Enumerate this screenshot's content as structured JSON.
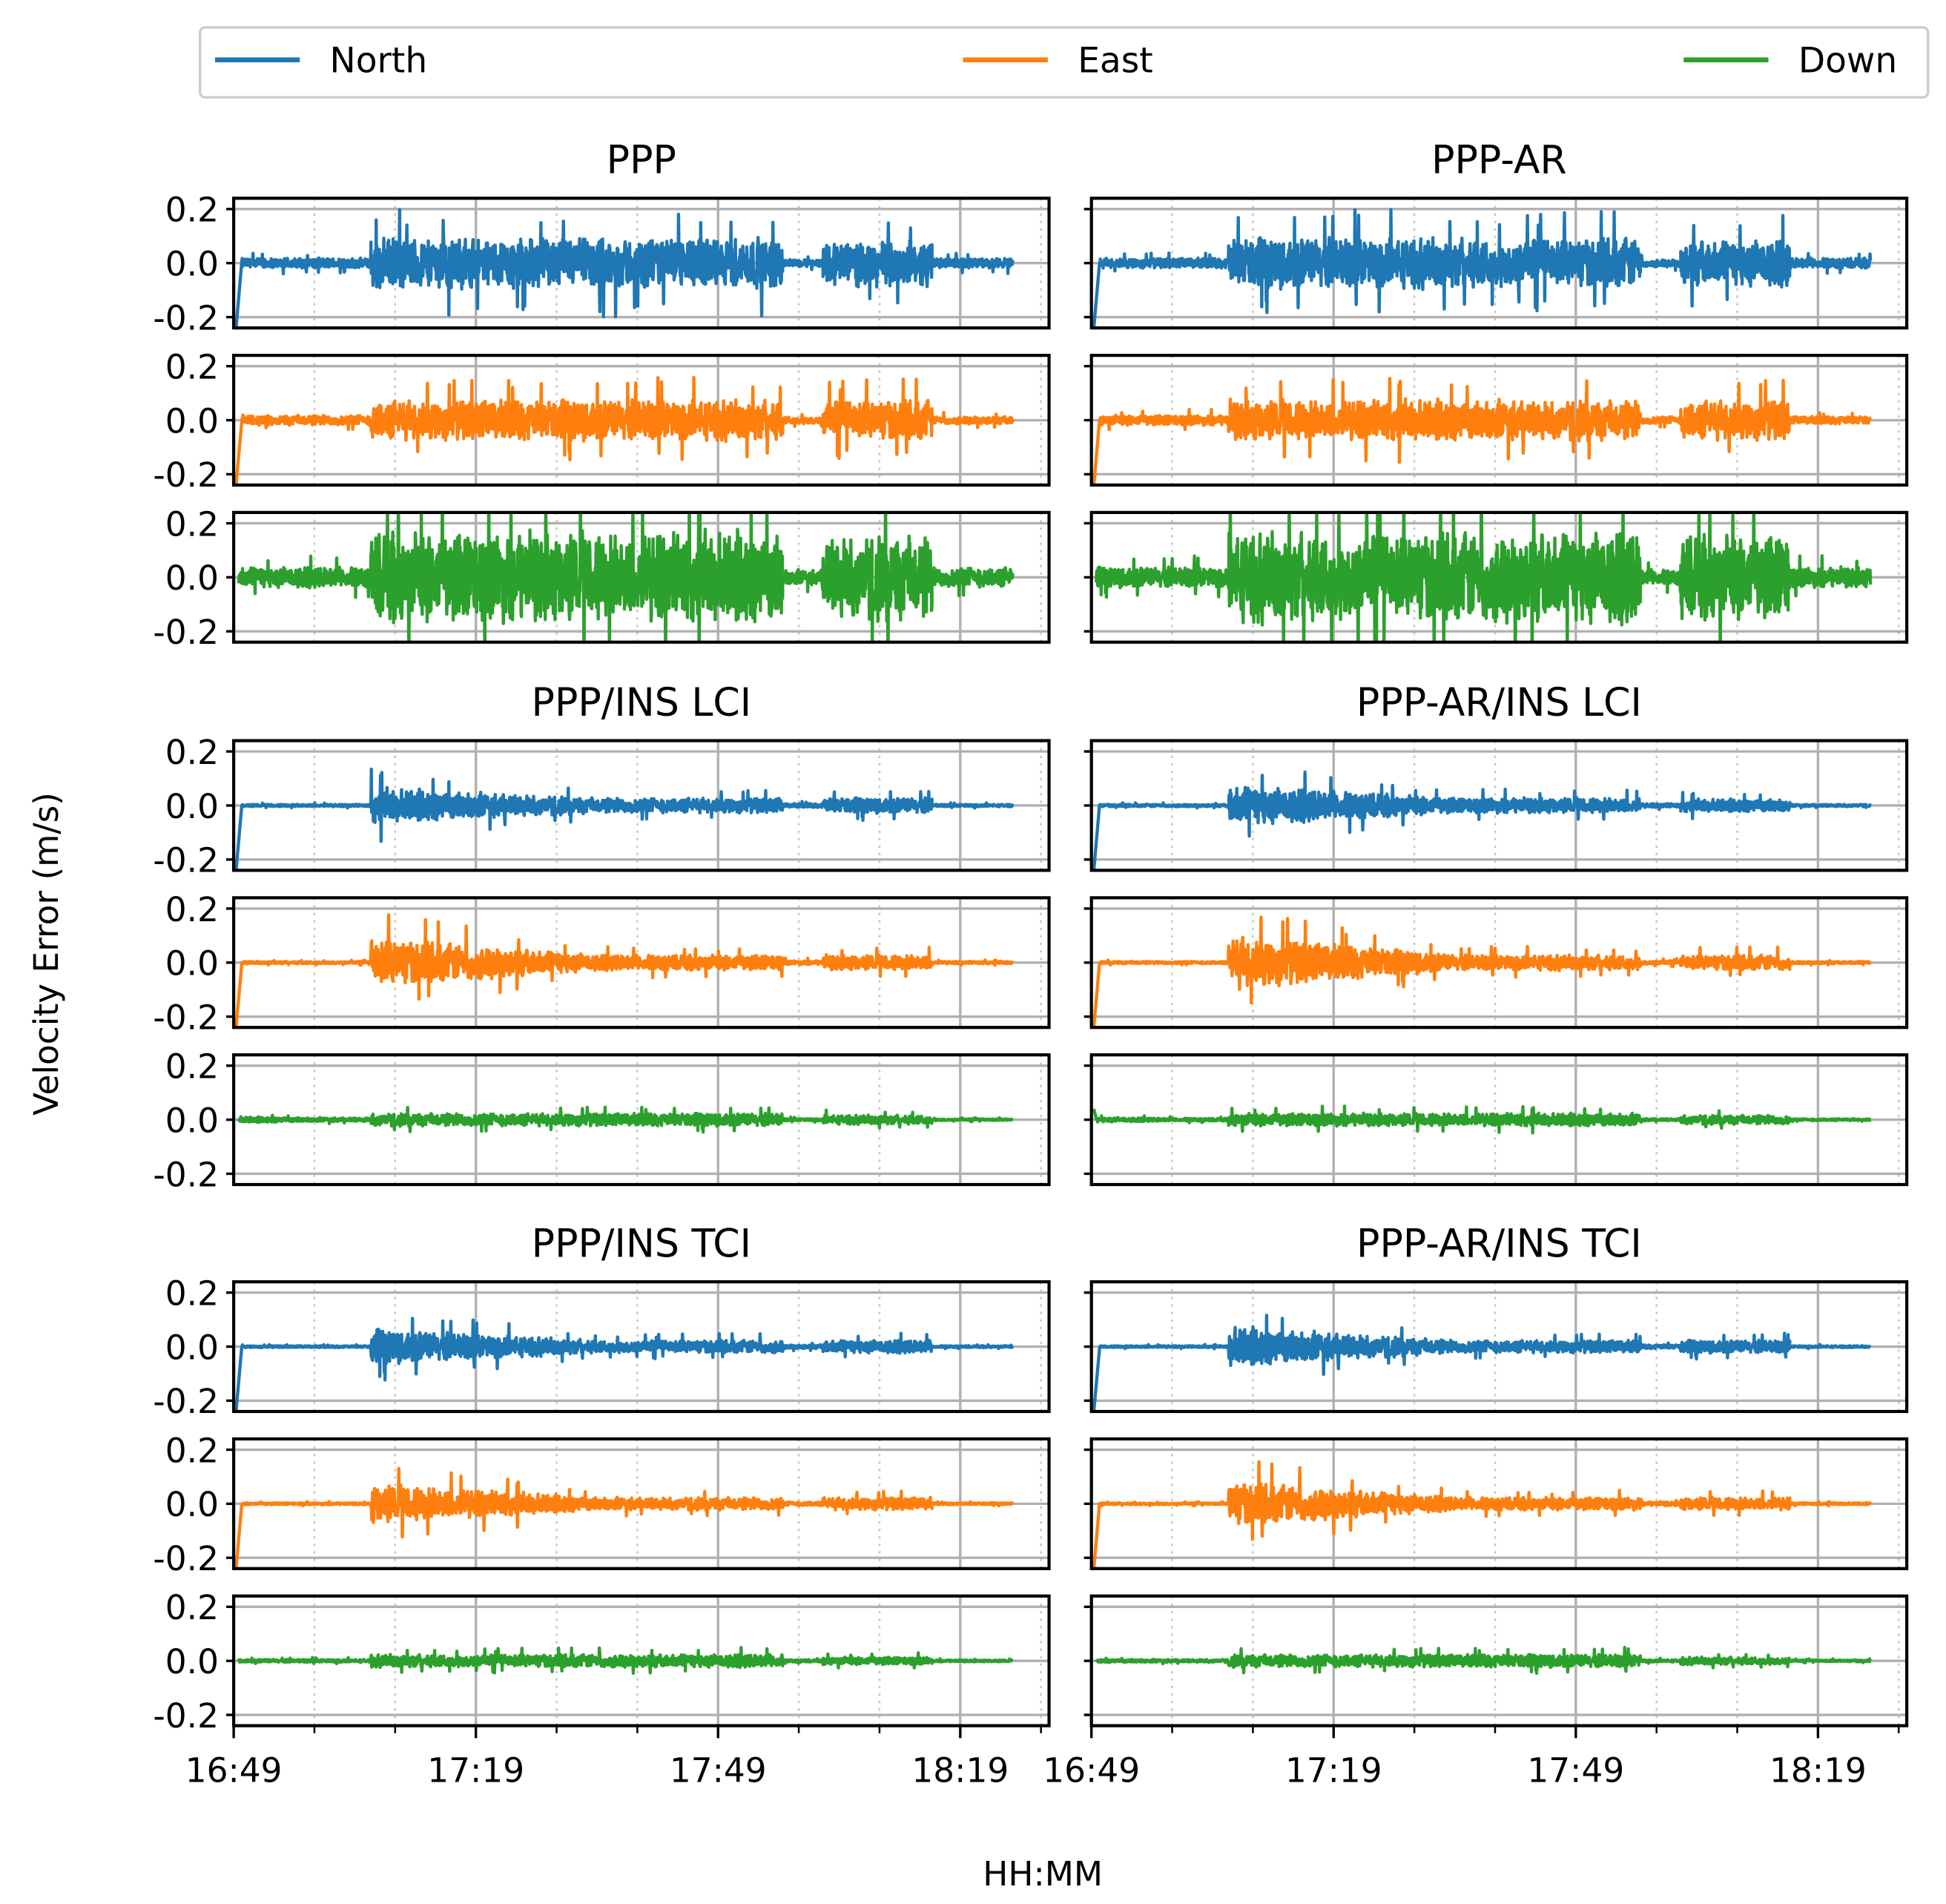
{
  "chart_data": {
    "type": "line",
    "xlabel": "HH:MM",
    "ylabel": "Velocity Error (m/s)",
    "x_unit": "minutes after 16:49",
    "xlim": [
      0,
      101
    ],
    "x_major_ticks": [
      0,
      30,
      60,
      90
    ],
    "x_tick_labels": [
      "16:49",
      "17:19",
      "17:49",
      "18:19"
    ],
    "x_minor_ticks": [
      10,
      20,
      40,
      50,
      70,
      80,
      100
    ],
    "ylim": [
      -0.24,
      0.24
    ],
    "y_ticks": [
      0.2,
      0.0,
      -0.2
    ],
    "y_tick_labels": [
      "0.2",
      "0.0",
      "-0.2"
    ],
    "grid": true,
    "legend": {
      "placement": "top",
      "entries": [
        {
          "name": "North",
          "color": "#1f77b4"
        },
        {
          "name": "East",
          "color": "#ff7f0e"
        },
        {
          "name": "Down",
          "color": "#2ca02c"
        }
      ]
    },
    "segments_note": "each segment: [start_min, end_min, amplitude_start, amplitude_end] of the error envelope (m/s)",
    "panels": [
      {
        "title": "PPP",
        "series": [
          {
            "name": "North",
            "initial": -0.24,
            "segments": [
              [
                1,
                17,
                0.02,
                0.02
              ],
              [
                17,
                68,
                0.1,
                0.1
              ],
              [
                68,
                73,
                0.015,
                0.015
              ],
              [
                73,
                86.5,
                0.09,
                0.09
              ],
              [
                86.5,
                96.5,
                0.02,
                0.02
              ]
            ]
          },
          {
            "name": "East",
            "initial": -0.24,
            "segments": [
              [
                1,
                17,
                0.02,
                0.02
              ],
              [
                17,
                68,
                0.08,
                0.08
              ],
              [
                68,
                73,
                0.015,
                0.015
              ],
              [
                73,
                86.5,
                0.08,
                0.08
              ],
              [
                86.5,
                96.5,
                0.015,
                0.015
              ]
            ]
          },
          {
            "name": "Down",
            "initial": 0,
            "segments": [
              [
                0,
                17,
                0.04,
                0.04
              ],
              [
                17,
                68,
                0.18,
                0.18
              ],
              [
                68,
                73,
                0.03,
                0.03
              ],
              [
                73,
                86.5,
                0.17,
                0.17
              ],
              [
                86.5,
                96.5,
                0.04,
                0.04
              ]
            ]
          }
        ]
      },
      {
        "title": "PPP-AR",
        "series": [
          {
            "name": "North",
            "initial": -0.24,
            "segments": [
              [
                1,
                17,
                0.02,
                0.02
              ],
              [
                17,
                68,
                0.1,
                0.1
              ],
              [
                68,
                73,
                0.015,
                0.015
              ],
              [
                73,
                86.5,
                0.09,
                0.09
              ],
              [
                86.5,
                96.5,
                0.02,
                0.02
              ]
            ]
          },
          {
            "name": "East",
            "initial": -0.24,
            "segments": [
              [
                1,
                17,
                0.02,
                0.02
              ],
              [
                17,
                68,
                0.08,
                0.08
              ],
              [
                68,
                73,
                0.015,
                0.015
              ],
              [
                73,
                86.5,
                0.08,
                0.08
              ],
              [
                86.5,
                96.5,
                0.015,
                0.015
              ]
            ]
          },
          {
            "name": "Down",
            "initial": 0,
            "segments": [
              [
                0,
                17,
                0.04,
                0.04
              ],
              [
                17,
                68,
                0.18,
                0.18
              ],
              [
                68,
                73,
                0.03,
                0.03
              ],
              [
                73,
                86.5,
                0.17,
                0.17
              ],
              [
                86.5,
                96.5,
                0.04,
                0.04
              ]
            ]
          }
        ]
      },
      {
        "title": "PPP/INS LCI",
        "series": [
          {
            "name": "North",
            "initial": -0.24,
            "segments": [
              [
                1,
                17,
                0.005,
                0.005
              ],
              [
                17,
                68,
                0.07,
                0.03
              ],
              [
                68,
                73,
                0.008,
                0.008
              ],
              [
                73,
                86.5,
                0.03,
                0.03
              ],
              [
                86.5,
                96.5,
                0.005,
                0.005
              ]
            ]
          },
          {
            "name": "East",
            "initial": -0.24,
            "segments": [
              [
                1,
                17,
                0.005,
                0.005
              ],
              [
                17,
                68,
                0.1,
                0.03
              ],
              [
                68,
                73,
                0.008,
                0.008
              ],
              [
                73,
                86.5,
                0.03,
                0.03
              ],
              [
                86.5,
                96.5,
                0.005,
                0.005
              ]
            ]
          },
          {
            "name": "Down",
            "initial": 0,
            "segments": [
              [
                0,
                17,
                0.012,
                0.008
              ],
              [
                17,
                68,
                0.025,
                0.025
              ],
              [
                68,
                73,
                0.005,
                0.005
              ],
              [
                73,
                86.5,
                0.018,
                0.018
              ],
              [
                86.5,
                96.5,
                0.004,
                0.004
              ]
            ]
          }
        ]
      },
      {
        "title": "PPP-AR/INS LCI",
        "series": [
          {
            "name": "North",
            "initial": -0.24,
            "segments": [
              [
                1,
                17,
                0.005,
                0.005
              ],
              [
                17,
                68,
                0.08,
                0.03
              ],
              [
                68,
                73,
                0.008,
                0.008
              ],
              [
                73,
                86.5,
                0.025,
                0.025
              ],
              [
                86.5,
                96.5,
                0.005,
                0.005
              ]
            ]
          },
          {
            "name": "East",
            "initial": -0.24,
            "segments": [
              [
                1,
                17,
                0.005,
                0.005
              ],
              [
                17,
                68,
                0.11,
                0.03
              ],
              [
                68,
                73,
                0.008,
                0.008
              ],
              [
                73,
                86.5,
                0.03,
                0.03
              ],
              [
                86.5,
                96.5,
                0.005,
                0.005
              ]
            ]
          },
          {
            "name": "Down",
            "initial": 0.04,
            "segments": [
              [
                0,
                17,
                0.01,
                0.006
              ],
              [
                17,
                68,
                0.025,
                0.025
              ],
              [
                68,
                73,
                0.005,
                0.005
              ],
              [
                73,
                86.5,
                0.018,
                0.018
              ],
              [
                86.5,
                96.5,
                0.004,
                0.004
              ]
            ]
          }
        ]
      },
      {
        "title": "PPP/INS TCI",
        "series": [
          {
            "name": "North",
            "initial": -0.24,
            "segments": [
              [
                1,
                17,
                0.004,
                0.004
              ],
              [
                17,
                68,
                0.07,
                0.025
              ],
              [
                68,
                73,
                0.008,
                0.008
              ],
              [
                73,
                86.5,
                0.025,
                0.025
              ],
              [
                86.5,
                96.5,
                0.004,
                0.004
              ]
            ]
          },
          {
            "name": "East",
            "initial": -0.24,
            "segments": [
              [
                1,
                17,
                0.004,
                0.004
              ],
              [
                17,
                68,
                0.08,
                0.025
              ],
              [
                68,
                73,
                0.008,
                0.008
              ],
              [
                73,
                86.5,
                0.025,
                0.025
              ],
              [
                86.5,
                96.5,
                0.004,
                0.004
              ]
            ]
          },
          {
            "name": "Down",
            "initial": 0,
            "segments": [
              [
                0,
                17,
                0.006,
                0.006
              ],
              [
                17,
                68,
                0.025,
                0.025
              ],
              [
                68,
                73,
                0.005,
                0.005
              ],
              [
                73,
                86.5,
                0.015,
                0.015
              ],
              [
                86.5,
                96.5,
                0.004,
                0.004
              ]
            ]
          }
        ]
      },
      {
        "title": "PPP-AR/INS TCI",
        "series": [
          {
            "name": "North",
            "initial": -0.24,
            "segments": [
              [
                1,
                17,
                0.004,
                0.004
              ],
              [
                17,
                68,
                0.08,
                0.025
              ],
              [
                68,
                73,
                0.008,
                0.008
              ],
              [
                73,
                86.5,
                0.025,
                0.025
              ],
              [
                86.5,
                96.5,
                0.004,
                0.004
              ]
            ]
          },
          {
            "name": "East",
            "initial": -0.24,
            "segments": [
              [
                1,
                17,
                0.004,
                0.004
              ],
              [
                17,
                68,
                0.09,
                0.025
              ],
              [
                68,
                73,
                0.008,
                0.008
              ],
              [
                73,
                86.5,
                0.025,
                0.025
              ],
              [
                86.5,
                96.5,
                0.004,
                0.004
              ]
            ]
          },
          {
            "name": "Down",
            "initial": 0,
            "segments": [
              [
                0,
                17,
                0.006,
                0.006
              ],
              [
                17,
                68,
                0.025,
                0.025
              ],
              [
                68,
                73,
                0.005,
                0.005
              ],
              [
                73,
                86.5,
                0.015,
                0.015
              ],
              [
                86.5,
                96.5,
                0.004,
                0.004
              ]
            ]
          }
        ]
      }
    ]
  }
}
